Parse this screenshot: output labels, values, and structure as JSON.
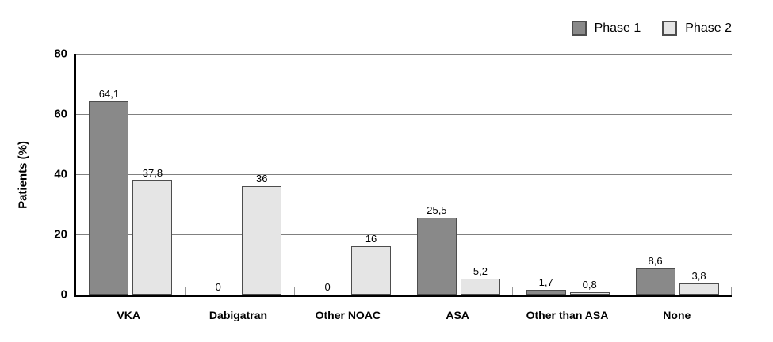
{
  "chart_data": {
    "type": "bar",
    "categories": [
      "VKA",
      "Dabigatran",
      "Other NOAC",
      "ASA",
      "Other than ASA",
      "None"
    ],
    "series": [
      {
        "name": "Phase 1",
        "color": "#898989",
        "values": [
          64.1,
          0,
          0,
          25.5,
          1.7,
          8.6
        ],
        "display_labels": [
          "64,1",
          "0",
          "0",
          "25,5",
          "1,7",
          "8,6"
        ]
      },
      {
        "name": "Phase 2",
        "color": "#e5e5e5",
        "values": [
          37.8,
          36,
          16,
          5.2,
          0.8,
          3.8
        ],
        "display_labels": [
          "37,8",
          "36",
          "16",
          "5,2",
          "0,8",
          "3,8"
        ]
      }
    ],
    "xlabel": "",
    "ylabel": "Patients (%)",
    "ylim": [
      0,
      80
    ],
    "yticks": [
      0,
      20,
      40,
      60,
      80
    ],
    "grid": true,
    "legend_position": "top-right"
  },
  "legend": {
    "items": [
      {
        "label": "Phase 1",
        "color": "#898989"
      },
      {
        "label": "Phase 2",
        "color": "#e5e5e5"
      }
    ]
  },
  "colors": {
    "bar_border": "#4d4d4d",
    "axis": "#000000",
    "gridline": "#808080",
    "boundary_tick": "#9a9a9a",
    "background": "#ffffff"
  }
}
